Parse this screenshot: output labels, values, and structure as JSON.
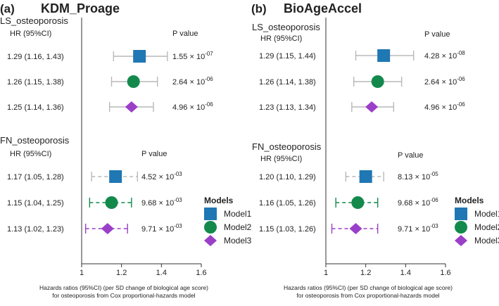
{
  "chart_data": [
    {
      "type": "forest",
      "panel_label": "(a)",
      "title": "KDM_Proage",
      "xlim": [
        1.0,
        1.6
      ],
      "ticks": [
        "1",
        "1.2",
        "1.4",
        "1.6"
      ],
      "tick_values": [
        1.0,
        1.2,
        1.4,
        1.6
      ],
      "xlabel_line1": "Hazards ratios (95%CI) (per SD change of biological age score)",
      "xlabel_line2": "for osteoporosis from Cox proportional-hazards model",
      "groups": [
        {
          "name": "LS_osteoporosis",
          "hr_header": "HR (95%CI)",
          "p_header": "P value",
          "rows": [
            {
              "model": "Model1",
              "hr": 1.29,
              "lo": 1.16,
              "hi": 1.43,
              "ci_text": "1.29 (1.16, 1.43)",
              "p_mant": "1.55 × 10",
              "p_exp": "-07"
            },
            {
              "model": "Model2",
              "hr": 1.26,
              "lo": 1.15,
              "hi": 1.38,
              "ci_text": "1.26 (1.15, 1.38)",
              "p_mant": "2.64 × 10",
              "p_exp": "-06"
            },
            {
              "model": "Model3",
              "hr": 1.25,
              "lo": 1.14,
              "hi": 1.36,
              "ci_text": "1.25 (1.14, 1.36)",
              "p_mant": "4.96 × 10",
              "p_exp": "-06"
            }
          ]
        },
        {
          "name": "FN_osteoporosis",
          "hr_header": "HR (95%CI)",
          "p_header": "P value",
          "rows": [
            {
              "model": "Model1",
              "hr": 1.17,
              "lo": 1.05,
              "hi": 1.28,
              "ci_text": "1.17 (1.05, 1.28)",
              "p_mant": "4.52 × 10",
              "p_exp": "-03"
            },
            {
              "model": "Model2",
              "hr": 1.15,
              "lo": 1.04,
              "hi": 1.25,
              "ci_text": "1.15 (1.04, 1.25)",
              "p_mant": "9.68 × 10",
              "p_exp": "-03"
            },
            {
              "model": "Model3",
              "hr": 1.13,
              "lo": 1.02,
              "hi": 1.23,
              "ci_text": "1.13 (1.02, 1.23)",
              "p_mant": "9.71 × 10",
              "p_exp": "-03"
            }
          ]
        }
      ]
    },
    {
      "type": "forest",
      "panel_label": "(b)",
      "title": "BioAgeAccel",
      "xlim": [
        1.0,
        1.6
      ],
      "ticks": [
        "1",
        "1.2",
        "1.4",
        "1.6"
      ],
      "tick_values": [
        1.0,
        1.2,
        1.4,
        1.6
      ],
      "xlabel_line1": "Hazards ratios (95%CI) (per SD change of biological age score)",
      "xlabel_line2": "for osteoporosis from Cox proportional-hazards model",
      "groups": [
        {
          "name": "LS_osteoporosis",
          "hr_header": "HR (95%CI)",
          "p_header": "P value",
          "rows": [
            {
              "model": "Model1",
              "hr": 1.29,
              "lo": 1.15,
              "hi": 1.44,
              "ci_text": "1.29 (1.15, 1.44)",
              "p_mant": "4.28 × 10",
              "p_exp": "-08"
            },
            {
              "model": "Model2",
              "hr": 1.26,
              "lo": 1.14,
              "hi": 1.38,
              "ci_text": "1.26 (1.14, 1.38)",
              "p_mant": "2.64 × 10",
              "p_exp": "-06"
            },
            {
              "model": "Model3",
              "hr": 1.23,
              "lo": 1.13,
              "hi": 1.34,
              "ci_text": "1.23 (1.13, 1.34)",
              "p_mant": "4.96 × 10",
              "p_exp": "-06"
            }
          ]
        },
        {
          "name": "FN_osteoporosis",
          "hr_header": "HR (95%CI)",
          "p_header": "P value",
          "rows": [
            {
              "model": "Model1",
              "hr": 1.2,
              "lo": 1.1,
              "hi": 1.29,
              "ci_text": "1.20 (1.10, 1.29)",
              "p_mant": "8.13 × 10",
              "p_exp": "-05"
            },
            {
              "model": "Model2",
              "hr": 1.16,
              "lo": 1.05,
              "hi": 1.26,
              "ci_text": "1.16 (1.05, 1.26)",
              "p_mant": "9.68 × 10",
              "p_exp": "-06"
            },
            {
              "model": "Model3",
              "hr": 1.15,
              "lo": 1.03,
              "hi": 1.26,
              "ci_text": "1.15 (1.03, 1.26)",
              "p_mant": "9.71 × 10",
              "p_exp": "-03"
            }
          ]
        }
      ]
    }
  ],
  "legend": {
    "title": "Models",
    "items": [
      {
        "label": "Model1",
        "marker": "square",
        "color": "#1f77b4"
      },
      {
        "label": "Model2",
        "marker": "circle",
        "color": "#138a4c"
      },
      {
        "label": "Model3",
        "marker": "diamond",
        "color": "#9b3fc9"
      }
    ]
  },
  "styles": {
    "ls_ci_color": "#b8b8b8",
    "fn_ci_colors": {
      "Model1": "#b8b8b8",
      "Model2": "#138a4c",
      "Model3": "#9b3fc9"
    },
    "fn_ci_dashed": true
  }
}
